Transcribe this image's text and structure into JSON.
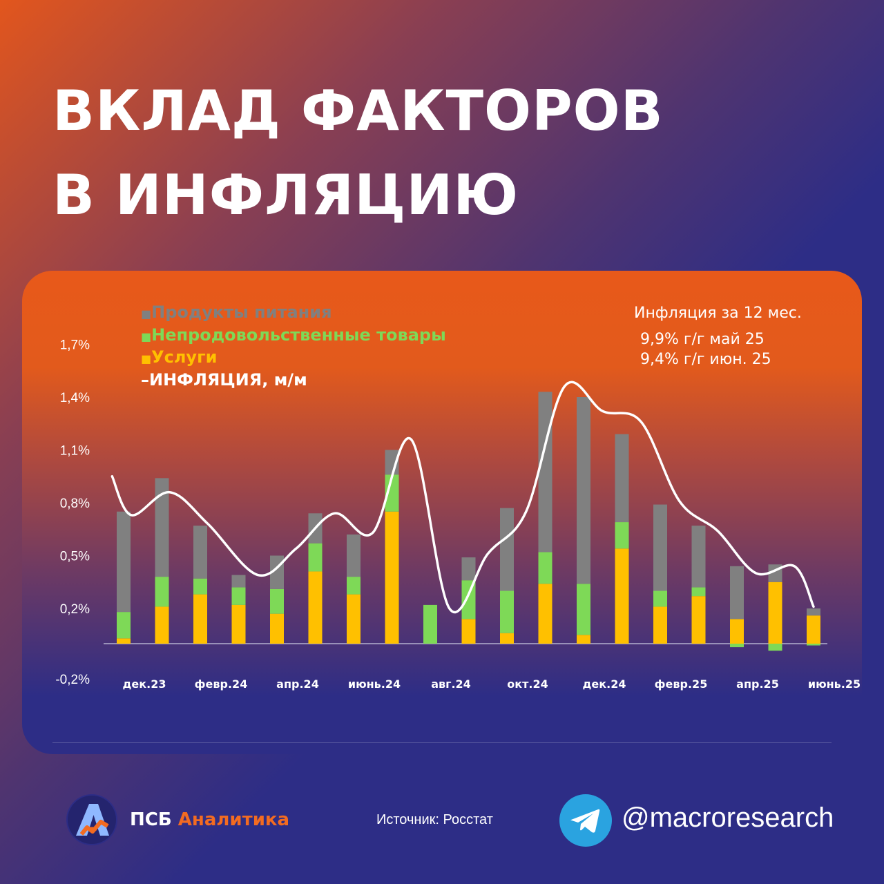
{
  "header": {
    "title_line1": "ВКЛАД ФАКТОРОВ",
    "title_line2": "В ИНФЛЯЦИЮ"
  },
  "chart_data": {
    "type": "bar",
    "stacked": true,
    "title": "ВКЛАД ФАКТОРОВ В ИНФЛЯЦИЮ",
    "unit": "%",
    "legend": [
      {
        "marker": "■",
        "label": "Продукты питания",
        "color": "#808080"
      },
      {
        "marker": "■",
        "label": "Непродовольственные товары",
        "color": "#7ed957"
      },
      {
        "marker": "■",
        "label": "Услуги",
        "color": "#ffc000"
      },
      {
        "marker": "–",
        "label": "ИНФЛЯЦИЯ, м/м",
        "color": "#ffffff"
      }
    ],
    "y_ticks": [
      "1,7%",
      "1,4%",
      "1,1%",
      "0,8%",
      "0,5%",
      "0,2%",
      "-0,2%"
    ],
    "y_tick_values": [
      1.7,
      1.4,
      1.1,
      0.8,
      0.5,
      0.2,
      -0.2
    ],
    "ylim": [
      -0.2,
      1.7
    ],
    "x_tick_labels": [
      "дек.23",
      "февр.24",
      "апр.24",
      "июнь.24",
      "авг.24",
      "окт.24",
      "дек.24",
      "февр.25",
      "апр.25",
      "июнь.25"
    ],
    "x_tick_indices": [
      0,
      2,
      4,
      6,
      8,
      10,
      12,
      14,
      16,
      18
    ],
    "categories": [
      "дек.23",
      "янв.24",
      "февр.24",
      "март.24",
      "апр.24",
      "май.24",
      "июнь.24",
      "июль.24",
      "авг.24",
      "сент.24",
      "окт.24",
      "нояб.24",
      "дек.24",
      "янв.25",
      "февр.25",
      "март.25",
      "апр.25",
      "май.25",
      "июнь.25"
    ],
    "series": [
      {
        "name": "Услуги",
        "color": "#ffc000",
        "values": [
          0.03,
          0.21,
          0.28,
          0.22,
          0.17,
          0.41,
          0.28,
          0.75,
          0.0,
          0.14,
          0.06,
          0.34,
          0.05,
          0.54,
          0.21,
          0.27,
          0.14,
          0.35,
          0.16
        ]
      },
      {
        "name": "Непродовольственные товары",
        "color": "#7ed957",
        "values": [
          0.15,
          0.17,
          0.09,
          0.1,
          0.14,
          0.16,
          0.1,
          0.21,
          0.22,
          0.22,
          0.24,
          0.18,
          0.29,
          0.15,
          0.09,
          0.05,
          -0.02,
          -0.04,
          -0.01
        ]
      },
      {
        "name": "Продукты питания",
        "color": "#808080",
        "values": [
          0.57,
          0.56,
          0.3,
          0.07,
          0.19,
          0.17,
          0.24,
          0.14,
          0.0,
          0.13,
          0.47,
          0.91,
          1.06,
          0.5,
          0.49,
          0.35,
          0.3,
          0.1,
          0.04
        ]
      }
    ],
    "line": {
      "name": "ИНФЛЯЦИЯ, м/м",
      "color": "#ffffff",
      "x": [
        -0.3,
        0.2,
        1.2,
        2.2,
        3.5,
        4.5,
        5.5,
        6.5,
        7.5,
        8.5,
        9.5,
        10.5,
        11.5,
        12.5,
        13.5,
        14.5,
        15.5,
        16.5,
        17.5,
        18.0
      ],
      "values": [
        0.95,
        0.73,
        0.86,
        0.68,
        0.39,
        0.54,
        0.74,
        0.63,
        1.16,
        0.2,
        0.51,
        0.75,
        1.46,
        1.32,
        1.26,
        0.81,
        0.64,
        0.4,
        0.44,
        0.21
      ]
    },
    "annotation": {
      "heading": "Инфляция за 12 мес.",
      "line1": "9,9% г/г  май 25",
      "line2": "9,4% г/г  июн. 25"
    }
  },
  "footer": {
    "brand_part1": "ПСБ",
    "brand_part2": "Аналитика",
    "source": "Источник: Росстат",
    "handle": "@macroresearch"
  },
  "colors": {
    "orange": "#e8591a",
    "navy": "#2d2d86",
    "brand_orange": "#f36b21",
    "telegram": "#2aa3e0"
  }
}
